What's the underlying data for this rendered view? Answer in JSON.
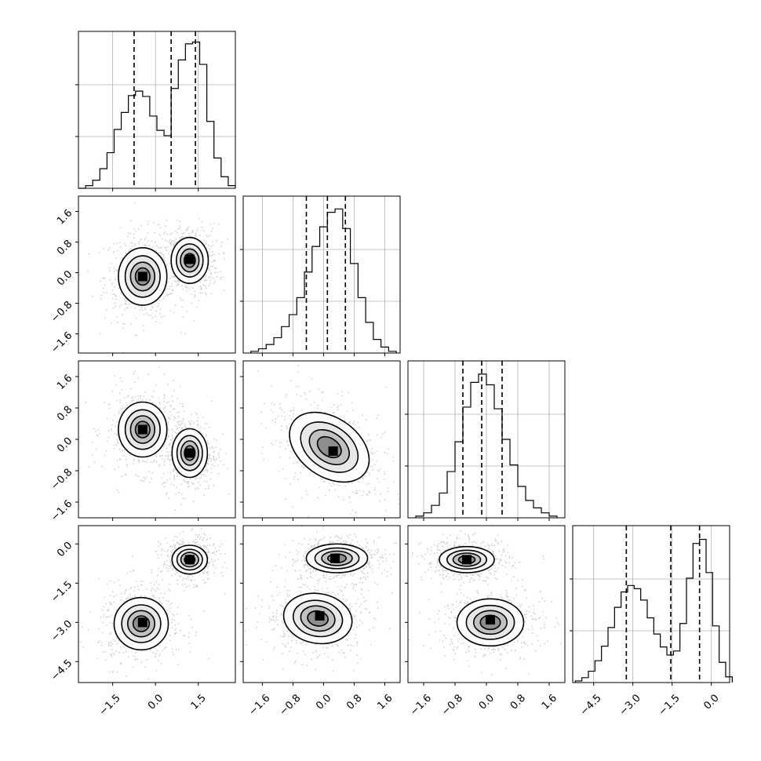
{
  "chart_data": {
    "type": "corner",
    "grid": true,
    "colors": {
      "contour": "#000000",
      "points": "#c8c8c8",
      "density_max": "#000000"
    },
    "params": [
      {
        "range": [
          -2.7,
          2.8
        ],
        "ticks": [
          -1.5,
          0.0,
          1.5
        ],
        "tick_labels": [
          "−1.5",
          "0.0",
          "1.5"
        ],
        "quantiles": [
          -0.75,
          0.55,
          1.4
        ],
        "histogram": [
          {
            "x": -2.7,
            "y": 0.0
          },
          {
            "x": -2.45,
            "y": 0.3
          },
          {
            "x": -2.2,
            "y": 0.9
          },
          {
            "x": -1.95,
            "y": 2.2
          },
          {
            "x": -1.7,
            "y": 4.0
          },
          {
            "x": -1.45,
            "y": 6.6
          },
          {
            "x": -1.2,
            "y": 8.5
          },
          {
            "x": -0.95,
            "y": 10.4
          },
          {
            "x": -0.7,
            "y": 10.9
          },
          {
            "x": -0.45,
            "y": 10.3
          },
          {
            "x": -0.2,
            "y": 8.1
          },
          {
            "x": 0.05,
            "y": 6.5
          },
          {
            "x": 0.3,
            "y": 5.9
          },
          {
            "x": 0.55,
            "y": 11.2
          },
          {
            "x": 0.8,
            "y": 14.4
          },
          {
            "x": 1.05,
            "y": 16.2
          },
          {
            "x": 1.3,
            "y": 16.4
          },
          {
            "x": 1.55,
            "y": 13.9
          },
          {
            "x": 1.8,
            "y": 7.5
          },
          {
            "x": 2.05,
            "y": 3.4
          },
          {
            "x": 2.3,
            "y": 1.3
          },
          {
            "x": 2.55,
            "y": 0.3
          }
        ],
        "hist_ymax": 17.6
      },
      {
        "range": [
          -2.1,
          2.0
        ],
        "ticks": [
          -1.6,
          -0.8,
          0.0,
          0.8,
          1.6
        ],
        "tick_labels": [
          "−1.6",
          "−0.8",
          "0.0",
          "0.8",
          "1.6"
        ],
        "quantiles": [
          -0.45,
          0.1,
          0.57
        ],
        "histogram": [
          {
            "x": -1.9,
            "y": 0.2
          },
          {
            "x": -1.7,
            "y": 0.5
          },
          {
            "x": -1.5,
            "y": 1.0
          },
          {
            "x": -1.3,
            "y": 1.8
          },
          {
            "x": -1.1,
            "y": 3.1
          },
          {
            "x": -0.9,
            "y": 4.5
          },
          {
            "x": -0.7,
            "y": 6.5
          },
          {
            "x": -0.5,
            "y": 9.5
          },
          {
            "x": -0.3,
            "y": 12.5
          },
          {
            "x": -0.1,
            "y": 14.8
          },
          {
            "x": 0.1,
            "y": 16.5
          },
          {
            "x": 0.3,
            "y": 16.9
          },
          {
            "x": 0.5,
            "y": 14.6
          },
          {
            "x": 0.7,
            "y": 10.5
          },
          {
            "x": 0.9,
            "y": 6.5
          },
          {
            "x": 1.1,
            "y": 3.6
          },
          {
            "x": 1.3,
            "y": 1.6
          },
          {
            "x": 1.5,
            "y": 0.7
          },
          {
            "x": 1.7,
            "y": 0.2
          }
        ],
        "hist_ymax": 18.4
      },
      {
        "range": [
          -2.0,
          2.0
        ],
        "ticks": [
          -1.6,
          -0.8,
          0.0,
          0.8,
          1.6
        ],
        "tick_labels": [
          "−1.6",
          "−0.8",
          "0.0",
          "0.8",
          "1.6"
        ],
        "quantiles": [
          -0.6,
          -0.12,
          0.4
        ],
        "histogram": [
          {
            "x": -1.8,
            "y": 0.2
          },
          {
            "x": -1.6,
            "y": 0.6
          },
          {
            "x": -1.4,
            "y": 1.5
          },
          {
            "x": -1.2,
            "y": 3.0
          },
          {
            "x": -1.0,
            "y": 5.6
          },
          {
            "x": -0.8,
            "y": 9.2
          },
          {
            "x": -0.6,
            "y": 13.4
          },
          {
            "x": -0.4,
            "y": 16.4
          },
          {
            "x": -0.2,
            "y": 17.4
          },
          {
            "x": 0.0,
            "y": 16.1
          },
          {
            "x": 0.2,
            "y": 13.2
          },
          {
            "x": 0.4,
            "y": 9.5
          },
          {
            "x": 0.6,
            "y": 6.4
          },
          {
            "x": 0.8,
            "y": 3.8
          },
          {
            "x": 1.0,
            "y": 2.1
          },
          {
            "x": 1.2,
            "y": 1.2
          },
          {
            "x": 1.4,
            "y": 0.6
          },
          {
            "x": 1.6,
            "y": 0.2
          }
        ],
        "hist_ymax": 19.0
      },
      {
        "range": [
          -5.3,
          0.7
        ],
        "ticks": [
          -4.5,
          -3.0,
          -1.5,
          0.0
        ],
        "tick_labels": [
          "−4.5",
          "−3.0",
          "−1.5",
          "0.0"
        ],
        "quantiles": [
          -3.25,
          -1.55,
          -0.45
        ],
        "histogram": [
          {
            "x": -5.2,
            "y": 0.2
          },
          {
            "x": -4.95,
            "y": 0.6
          },
          {
            "x": -4.7,
            "y": 1.4
          },
          {
            "x": -4.45,
            "y": 2.7
          },
          {
            "x": -4.2,
            "y": 4.5
          },
          {
            "x": -3.95,
            "y": 6.8
          },
          {
            "x": -3.7,
            "y": 9.3
          },
          {
            "x": -3.45,
            "y": 11.2
          },
          {
            "x": -3.2,
            "y": 12.0
          },
          {
            "x": -2.95,
            "y": 11.6
          },
          {
            "x": -2.7,
            "y": 10.2
          },
          {
            "x": -2.45,
            "y": 8.0
          },
          {
            "x": -2.2,
            "y": 6.0
          },
          {
            "x": -1.95,
            "y": 4.4
          },
          {
            "x": -1.7,
            "y": 3.4
          },
          {
            "x": -1.45,
            "y": 3.9
          },
          {
            "x": -1.2,
            "y": 7.3
          },
          {
            "x": -0.95,
            "y": 12.9
          },
          {
            "x": -0.7,
            "y": 17.2
          },
          {
            "x": -0.45,
            "y": 17.7
          },
          {
            "x": -0.2,
            "y": 13.6
          },
          {
            "x": 0.05,
            "y": 7.0
          },
          {
            "x": 0.3,
            "y": 2.5
          },
          {
            "x": 0.55,
            "y": 0.7
          }
        ],
        "hist_ymax": 19.4
      }
    ],
    "pairs": [
      {
        "row": 1,
        "col": 0,
        "modes": [
          {
            "center": [
              -0.45,
              -0.1
            ],
            "radii": [
              0.85,
              0.75
            ],
            "angle": 0,
            "peak": [
              -0.45,
              -0.1
            ]
          },
          {
            "center": [
              1.2,
              0.32
            ],
            "radii": [
              0.65,
              0.6
            ],
            "angle": 0,
            "peak": [
              1.2,
              0.35
            ]
          }
        ]
      },
      {
        "row": 2,
        "col": 0,
        "modes": [
          {
            "center": [
              -0.45,
              0.25
            ],
            "radii": [
              0.85,
              0.7
            ],
            "angle": 0,
            "peak": [
              -0.45,
              0.25
            ]
          },
          {
            "center": [
              1.2,
              -0.35
            ],
            "radii": [
              0.62,
              0.62
            ],
            "angle": 0,
            "peak": [
              1.2,
              -0.35
            ]
          }
        ]
      },
      {
        "row": 2,
        "col": 1,
        "modes": [
          {
            "center": [
              0.15,
              -0.2
            ],
            "radii": [
              1.15,
              0.75
            ],
            "angle": -35,
            "peak": [
              0.25,
              -0.3
            ]
          }
        ]
      },
      {
        "row": 3,
        "col": 0,
        "modes": [
          {
            "center": [
              -0.5,
              -3.05
            ],
            "radii": [
              0.95,
              1.0
            ],
            "angle": 0,
            "peak": [
              -0.45,
              -3.0
            ]
          },
          {
            "center": [
              1.2,
              -0.6
            ],
            "radii": [
              0.62,
              0.55
            ],
            "angle": 0,
            "peak": [
              1.2,
              -0.6
            ]
          }
        ]
      },
      {
        "row": 3,
        "col": 1,
        "modes": [
          {
            "center": [
              0.35,
              -0.55
            ],
            "radii": [
              0.8,
              0.55
            ],
            "angle": 0,
            "peak": [
              0.3,
              -0.55
            ]
          },
          {
            "center": [
              -0.15,
              -2.85
            ],
            "radii": [
              0.9,
              0.95
            ],
            "angle": -10,
            "peak": [
              -0.1,
              -2.75
            ]
          }
        ]
      },
      {
        "row": 3,
        "col": 2,
        "modes": [
          {
            "center": [
              -0.5,
              -0.6
            ],
            "radii": [
              0.7,
              0.5
            ],
            "angle": 0,
            "peak": [
              -0.5,
              -0.6
            ]
          },
          {
            "center": [
              0.1,
              -3.0
            ],
            "radii": [
              0.85,
              0.9
            ],
            "angle": 0,
            "peak": [
              0.1,
              -2.9
            ]
          }
        ]
      }
    ]
  }
}
